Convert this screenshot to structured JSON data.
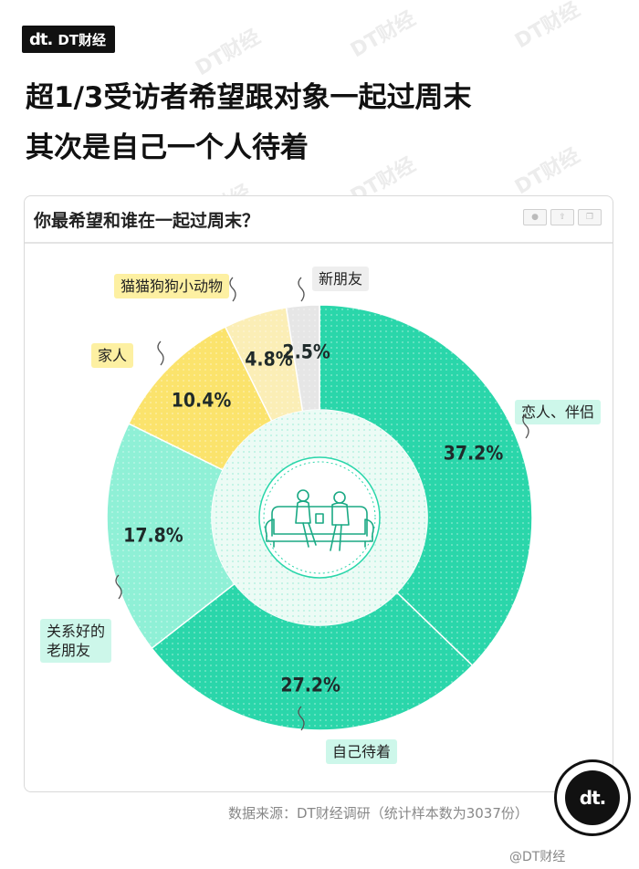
{
  "brand": {
    "name": "DT财经",
    "glyph": "dt."
  },
  "headline": {
    "line1": "超1/3受访者希望跟对象一起过周末",
    "line2": "其次是自己一个人待着"
  },
  "card": {
    "title": "你最希望和谁在一起过周末？"
  },
  "source": "数据来源：DT财经调研（统计样本数为3037份）",
  "footer_mark": "@DT财经",
  "colors": {
    "teal": "#2ad6aa",
    "light_teal": "#8ff0d6",
    "yellow": "#fbe36c",
    "pale_yellow": "#fbeeb6",
    "grey": "#e6e6e6",
    "label_teal": "#cdf7ea",
    "label_yellow": "#fdf0a2",
    "label_grey": "#eeeeee"
  },
  "chart_data": {
    "type": "pie",
    "title": "你最希望和谁在一起过周末？",
    "unit": "%",
    "series": [
      {
        "name": "恋人、伴侣",
        "value": 37.2,
        "label": "37.2%",
        "color": "#2ad6aa",
        "tag_color": "#cdf7ea"
      },
      {
        "name": "自己待着",
        "value": 27.2,
        "label": "27.2%",
        "color": "#2ad6aa",
        "tag_color": "#cdf7ea"
      },
      {
        "name": "关系好的\n老朋友",
        "value": 17.8,
        "label": "17.8%",
        "color": "#8ff0d6",
        "tag_color": "#cdf7ea"
      },
      {
        "name": "家人",
        "value": 10.4,
        "label": "10.4%",
        "color": "#fbe36c",
        "tag_color": "#fdf0a2"
      },
      {
        "name": "猫猫狗狗小动物",
        "value": 4.8,
        "label": "4.8%",
        "color": "#fbeeb6",
        "tag_color": "#fdf0a2"
      },
      {
        "name": "新朋友",
        "value": 2.5,
        "label": "2.5%",
        "color": "#e6e6e6",
        "tag_color": "#eeeeee"
      }
    ]
  }
}
